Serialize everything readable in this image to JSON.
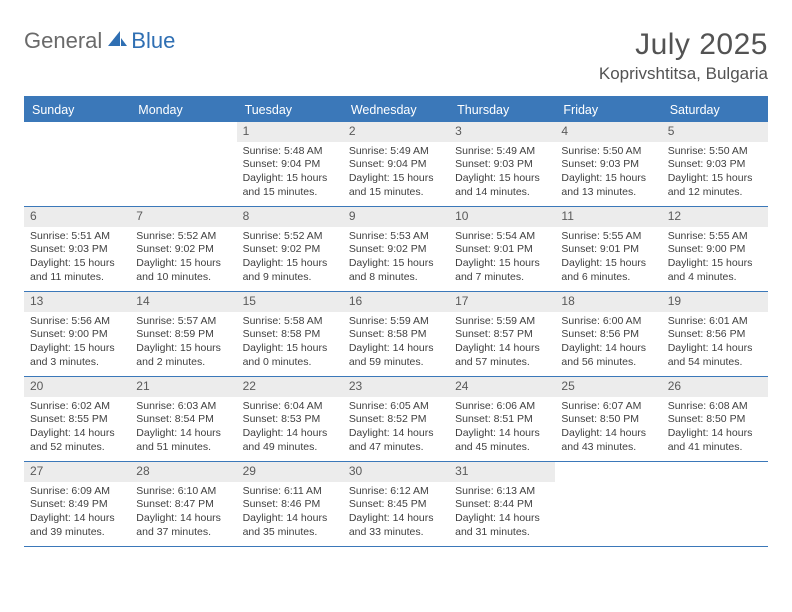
{
  "logo": {
    "general": "General",
    "blue": "Blue"
  },
  "title": "July 2025",
  "location": "Koprivshtitsa, Bulgaria",
  "dayNames": [
    "Sunday",
    "Monday",
    "Tuesday",
    "Wednesday",
    "Thursday",
    "Friday",
    "Saturday"
  ],
  "colors": {
    "brandBlue": "#3b78b9",
    "headerText": "#ffffff",
    "bodyText": "#404040",
    "dayNumBg": "#ececec",
    "titleGray": "#535353",
    "logoGray": "#6a6a6a",
    "logoBlue": "#2f6fb3"
  },
  "layout": {
    "startDayOfWeek": 2,
    "daysInMonth": 31,
    "columns": 7,
    "rows": 5
  },
  "typography": {
    "title_pt": 30,
    "location_pt": 17,
    "dayHeader_pt": 12.5,
    "dayNum_pt": 12,
    "body_pt": 10.5
  },
  "days": [
    {
      "n": 1,
      "sunrise": "5:48 AM",
      "sunset": "9:04 PM",
      "daylight": "15 hours and 15 minutes."
    },
    {
      "n": 2,
      "sunrise": "5:49 AM",
      "sunset": "9:04 PM",
      "daylight": "15 hours and 15 minutes."
    },
    {
      "n": 3,
      "sunrise": "5:49 AM",
      "sunset": "9:03 PM",
      "daylight": "15 hours and 14 minutes."
    },
    {
      "n": 4,
      "sunrise": "5:50 AM",
      "sunset": "9:03 PM",
      "daylight": "15 hours and 13 minutes."
    },
    {
      "n": 5,
      "sunrise": "5:50 AM",
      "sunset": "9:03 PM",
      "daylight": "15 hours and 12 minutes."
    },
    {
      "n": 6,
      "sunrise": "5:51 AM",
      "sunset": "9:03 PM",
      "daylight": "15 hours and 11 minutes."
    },
    {
      "n": 7,
      "sunrise": "5:52 AM",
      "sunset": "9:02 PM",
      "daylight": "15 hours and 10 minutes."
    },
    {
      "n": 8,
      "sunrise": "5:52 AM",
      "sunset": "9:02 PM",
      "daylight": "15 hours and 9 minutes."
    },
    {
      "n": 9,
      "sunrise": "5:53 AM",
      "sunset": "9:02 PM",
      "daylight": "15 hours and 8 minutes."
    },
    {
      "n": 10,
      "sunrise": "5:54 AM",
      "sunset": "9:01 PM",
      "daylight": "15 hours and 7 minutes."
    },
    {
      "n": 11,
      "sunrise": "5:55 AM",
      "sunset": "9:01 PM",
      "daylight": "15 hours and 6 minutes."
    },
    {
      "n": 12,
      "sunrise": "5:55 AM",
      "sunset": "9:00 PM",
      "daylight": "15 hours and 4 minutes."
    },
    {
      "n": 13,
      "sunrise": "5:56 AM",
      "sunset": "9:00 PM",
      "daylight": "15 hours and 3 minutes."
    },
    {
      "n": 14,
      "sunrise": "5:57 AM",
      "sunset": "8:59 PM",
      "daylight": "15 hours and 2 minutes."
    },
    {
      "n": 15,
      "sunrise": "5:58 AM",
      "sunset": "8:58 PM",
      "daylight": "15 hours and 0 minutes."
    },
    {
      "n": 16,
      "sunrise": "5:59 AM",
      "sunset": "8:58 PM",
      "daylight": "14 hours and 59 minutes."
    },
    {
      "n": 17,
      "sunrise": "5:59 AM",
      "sunset": "8:57 PM",
      "daylight": "14 hours and 57 minutes."
    },
    {
      "n": 18,
      "sunrise": "6:00 AM",
      "sunset": "8:56 PM",
      "daylight": "14 hours and 56 minutes."
    },
    {
      "n": 19,
      "sunrise": "6:01 AM",
      "sunset": "8:56 PM",
      "daylight": "14 hours and 54 minutes."
    },
    {
      "n": 20,
      "sunrise": "6:02 AM",
      "sunset": "8:55 PM",
      "daylight": "14 hours and 52 minutes."
    },
    {
      "n": 21,
      "sunrise": "6:03 AM",
      "sunset": "8:54 PM",
      "daylight": "14 hours and 51 minutes."
    },
    {
      "n": 22,
      "sunrise": "6:04 AM",
      "sunset": "8:53 PM",
      "daylight": "14 hours and 49 minutes."
    },
    {
      "n": 23,
      "sunrise": "6:05 AM",
      "sunset": "8:52 PM",
      "daylight": "14 hours and 47 minutes."
    },
    {
      "n": 24,
      "sunrise": "6:06 AM",
      "sunset": "8:51 PM",
      "daylight": "14 hours and 45 minutes."
    },
    {
      "n": 25,
      "sunrise": "6:07 AM",
      "sunset": "8:50 PM",
      "daylight": "14 hours and 43 minutes."
    },
    {
      "n": 26,
      "sunrise": "6:08 AM",
      "sunset": "8:50 PM",
      "daylight": "14 hours and 41 minutes."
    },
    {
      "n": 27,
      "sunrise": "6:09 AM",
      "sunset": "8:49 PM",
      "daylight": "14 hours and 39 minutes."
    },
    {
      "n": 28,
      "sunrise": "6:10 AM",
      "sunset": "8:47 PM",
      "daylight": "14 hours and 37 minutes."
    },
    {
      "n": 29,
      "sunrise": "6:11 AM",
      "sunset": "8:46 PM",
      "daylight": "14 hours and 35 minutes."
    },
    {
      "n": 30,
      "sunrise": "6:12 AM",
      "sunset": "8:45 PM",
      "daylight": "14 hours and 33 minutes."
    },
    {
      "n": 31,
      "sunrise": "6:13 AM",
      "sunset": "8:44 PM",
      "daylight": "14 hours and 31 minutes."
    }
  ],
  "labels": {
    "sunrise": "Sunrise: ",
    "sunset": "Sunset: ",
    "daylight": "Daylight: "
  }
}
